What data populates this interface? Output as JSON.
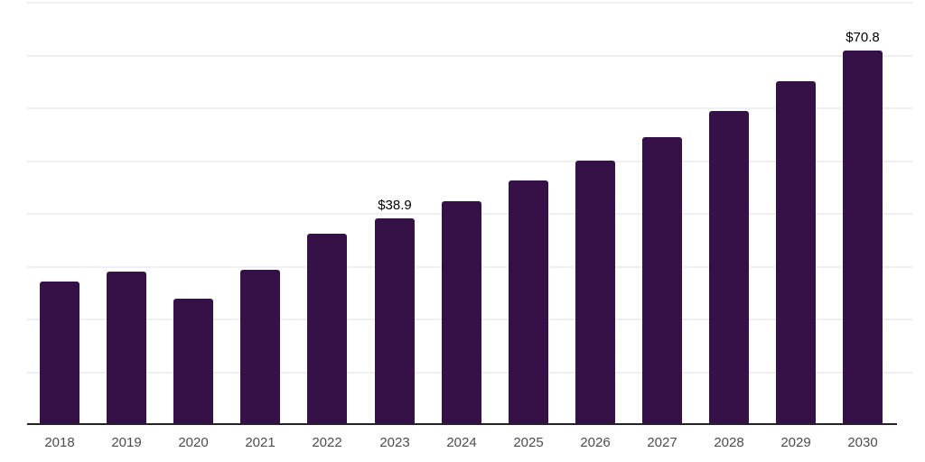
{
  "chart_data": {
    "type": "bar",
    "title": "",
    "xlabel": "",
    "ylabel": "",
    "categories": [
      "2018",
      "2019",
      "2020",
      "2021",
      "2022",
      "2023",
      "2024",
      "2025",
      "2026",
      "2027",
      "2028",
      "2029",
      "2030"
    ],
    "values": [
      27.0,
      28.9,
      23.8,
      29.2,
      36.1,
      38.9,
      42.3,
      46.1,
      49.9,
      54.3,
      59.4,
      65.0,
      70.8
    ],
    "data_labels": [
      {
        "category": "2023",
        "text": "$38.9"
      },
      {
        "category": "2030",
        "text": "$70.8"
      }
    ],
    "ylim": [
      0,
      80
    ],
    "gridline_step": 10,
    "grid": "horizontal",
    "legend": "none",
    "colors": {
      "bar": "#361148",
      "axis_line": "#232228",
      "gridline": "#efeff1",
      "tick_label": "#4d4d4d",
      "data_label": "#000000",
      "background": "#ffffff"
    }
  }
}
